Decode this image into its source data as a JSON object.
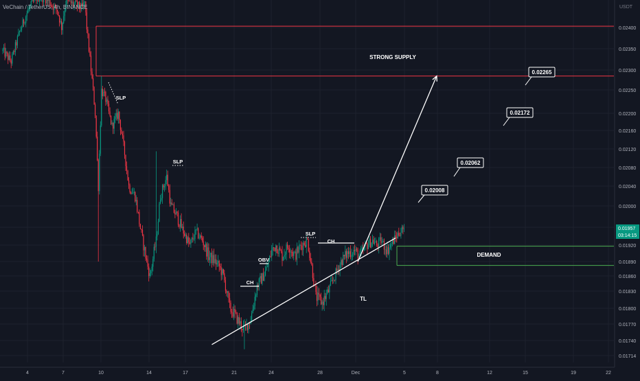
{
  "header": {
    "title": "VeChain / TetherUS, 4h, BINANCE",
    "currency": "USDT"
  },
  "chart_data": {
    "type": "candlestick",
    "title": "VeChain / TetherUS, 4h, BINANCE",
    "ylabel": "USDT",
    "ylim": [
      0.01706,
      0.02465
    ],
    "price_ticks": [
      "0.02400",
      "0.02350",
      "0.02300",
      "0.02250",
      "0.02200",
      "0.02160",
      "0.02120",
      "0.02080",
      "0.02040",
      "0.02000",
      "0.01960",
      "0.01920",
      "0.01890",
      "0.01860",
      "0.01830",
      "0.01800",
      "0.01770",
      "0.01740",
      "0.01714"
    ],
    "x_ticks": [
      "4",
      "7",
      "10",
      "14",
      "17",
      "21",
      "24",
      "28",
      "Dec",
      "5",
      "8",
      "12",
      "15",
      "19",
      "22"
    ],
    "current_price": {
      "value": 0.01957,
      "label": "0.01957",
      "countdown": "03:14:15"
    },
    "zones": [
      {
        "name": "STRONG SUPPLY",
        "low": 0.02285,
        "high": 0.02403,
        "color": "#f23645"
      },
      {
        "name": "DEMAND",
        "low": 0.01882,
        "high": 0.01918,
        "color": "#4caf50"
      }
    ],
    "trendline": {
      "label": "TL",
      "start": {
        "bar": 199,
        "price": 0.01733
      },
      "end": {
        "bar": 374,
        "price": 0.01936
      }
    },
    "targets": [
      "0.02008",
      "0.02062",
      "0.02172",
      "0.02265"
    ],
    "projection": {
      "start": {
        "bar": 338,
        "price": 0.0189
      },
      "end": {
        "bar": 413,
        "price": 0.02285
      }
    },
    "annotations": [
      "SLP",
      "SLP",
      "SLP",
      "CH",
      "CH",
      "OBV"
    ],
    "grid": true,
    "legend": "none"
  }
}
